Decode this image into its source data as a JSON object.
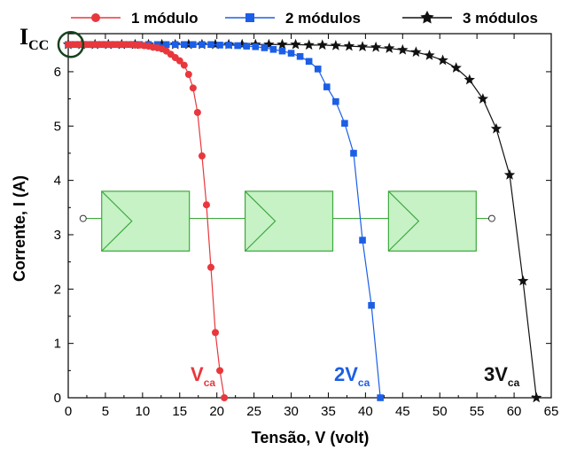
{
  "chart_data": {
    "type": "line",
    "xlabel": "Tensão, V (volt)",
    "ylabel": "Corrente, I (A)",
    "xlim": [
      0,
      65
    ],
    "ylim": [
      0,
      6.7
    ],
    "xticks": [
      "0",
      "5",
      "10",
      "15",
      "20",
      "25",
      "30",
      "35",
      "40",
      "45",
      "50",
      "55",
      "60",
      "65"
    ],
    "yticks": [
      "0",
      "1",
      "2",
      "3",
      "4",
      "5",
      "6"
    ],
    "grid": false,
    "legend_position": "top",
    "series": [
      {
        "name": "1 módulo",
        "color": "#e8383d",
        "marker": "circle",
        "x": [
          0,
          0.6,
          1.2,
          1.8,
          2.4,
          3,
          3.6,
          4.2,
          4.8,
          5.4,
          6,
          6.6,
          7.2,
          7.8,
          8.4,
          9,
          9.6,
          10.2,
          10.8,
          11.4,
          12,
          12.6,
          13.2,
          13.8,
          14.4,
          15,
          15.6,
          16.2,
          16.8,
          17.4,
          18,
          18.6,
          19.2,
          19.8,
          20.4,
          21
        ],
        "y": [
          6.5,
          6.5,
          6.5,
          6.5,
          6.5,
          6.5,
          6.5,
          6.5,
          6.5,
          6.5,
          6.5,
          6.5,
          6.5,
          6.5,
          6.5,
          6.49,
          6.49,
          6.48,
          6.47,
          6.45,
          6.44,
          6.42,
          6.38,
          6.32,
          6.26,
          6.2,
          6.12,
          5.95,
          5.7,
          5.25,
          4.45,
          3.55,
          2.4,
          1.2,
          0.5,
          0
        ]
      },
      {
        "name": "2 módulos",
        "color": "#1c5ee6",
        "marker": "square",
        "x": [
          0,
          1.2,
          2.4,
          3.6,
          4.8,
          6,
          7.2,
          8.4,
          9.6,
          10.8,
          12,
          13.2,
          14.4,
          15.6,
          16.8,
          18,
          19.2,
          20.4,
          21.6,
          22.8,
          24,
          25.2,
          26.4,
          27.6,
          28.8,
          30,
          31.2,
          32.4,
          33.6,
          34.8,
          36,
          37.2,
          38.4,
          39.6,
          40.8,
          42
        ],
        "y": [
          6.5,
          6.5,
          6.5,
          6.5,
          6.5,
          6.5,
          6.5,
          6.5,
          6.5,
          6.5,
          6.5,
          6.5,
          6.5,
          6.5,
          6.5,
          6.5,
          6.5,
          6.49,
          6.49,
          6.48,
          6.47,
          6.46,
          6.44,
          6.41,
          6.38,
          6.34,
          6.28,
          6.19,
          6.05,
          5.72,
          5.45,
          5.05,
          4.5,
          2.9,
          1.7,
          0
        ]
      },
      {
        "name": "3 módulos",
        "color": "#111111",
        "marker": "star",
        "x": [
          0,
          1.8,
          3.6,
          5.4,
          7.2,
          9,
          10.8,
          12.6,
          14.4,
          16.2,
          18,
          19.8,
          21.6,
          23.4,
          25.2,
          27,
          28.8,
          30.6,
          32.4,
          34.2,
          36,
          37.8,
          39.6,
          41.4,
          43.2,
          45,
          46.8,
          48.6,
          50.4,
          52.2,
          54,
          55.8,
          57.6,
          59.4,
          61.2,
          63
        ],
        "y": [
          6.5,
          6.5,
          6.5,
          6.5,
          6.5,
          6.5,
          6.5,
          6.5,
          6.5,
          6.5,
          6.5,
          6.5,
          6.5,
          6.5,
          6.5,
          6.5,
          6.5,
          6.5,
          6.49,
          6.49,
          6.48,
          6.47,
          6.46,
          6.45,
          6.43,
          6.4,
          6.36,
          6.3,
          6.21,
          6.07,
          5.85,
          5.5,
          4.95,
          4.1,
          2.15,
          0
        ]
      }
    ],
    "annotations": {
      "icc": {
        "main": "I",
        "sub": "CC"
      },
      "vca1": {
        "main": "V",
        "sub": "ca",
        "color": "#e8383d"
      },
      "vca2": {
        "main": "2V",
        "sub": "ca",
        "color": "#1c5ee6"
      },
      "vca3": {
        "main": "3V",
        "sub": "ca",
        "color": "#111111"
      }
    },
    "module_diagram": {
      "count": 3,
      "fill": "#c6f2c6",
      "stroke": "#3ea83e"
    }
  }
}
